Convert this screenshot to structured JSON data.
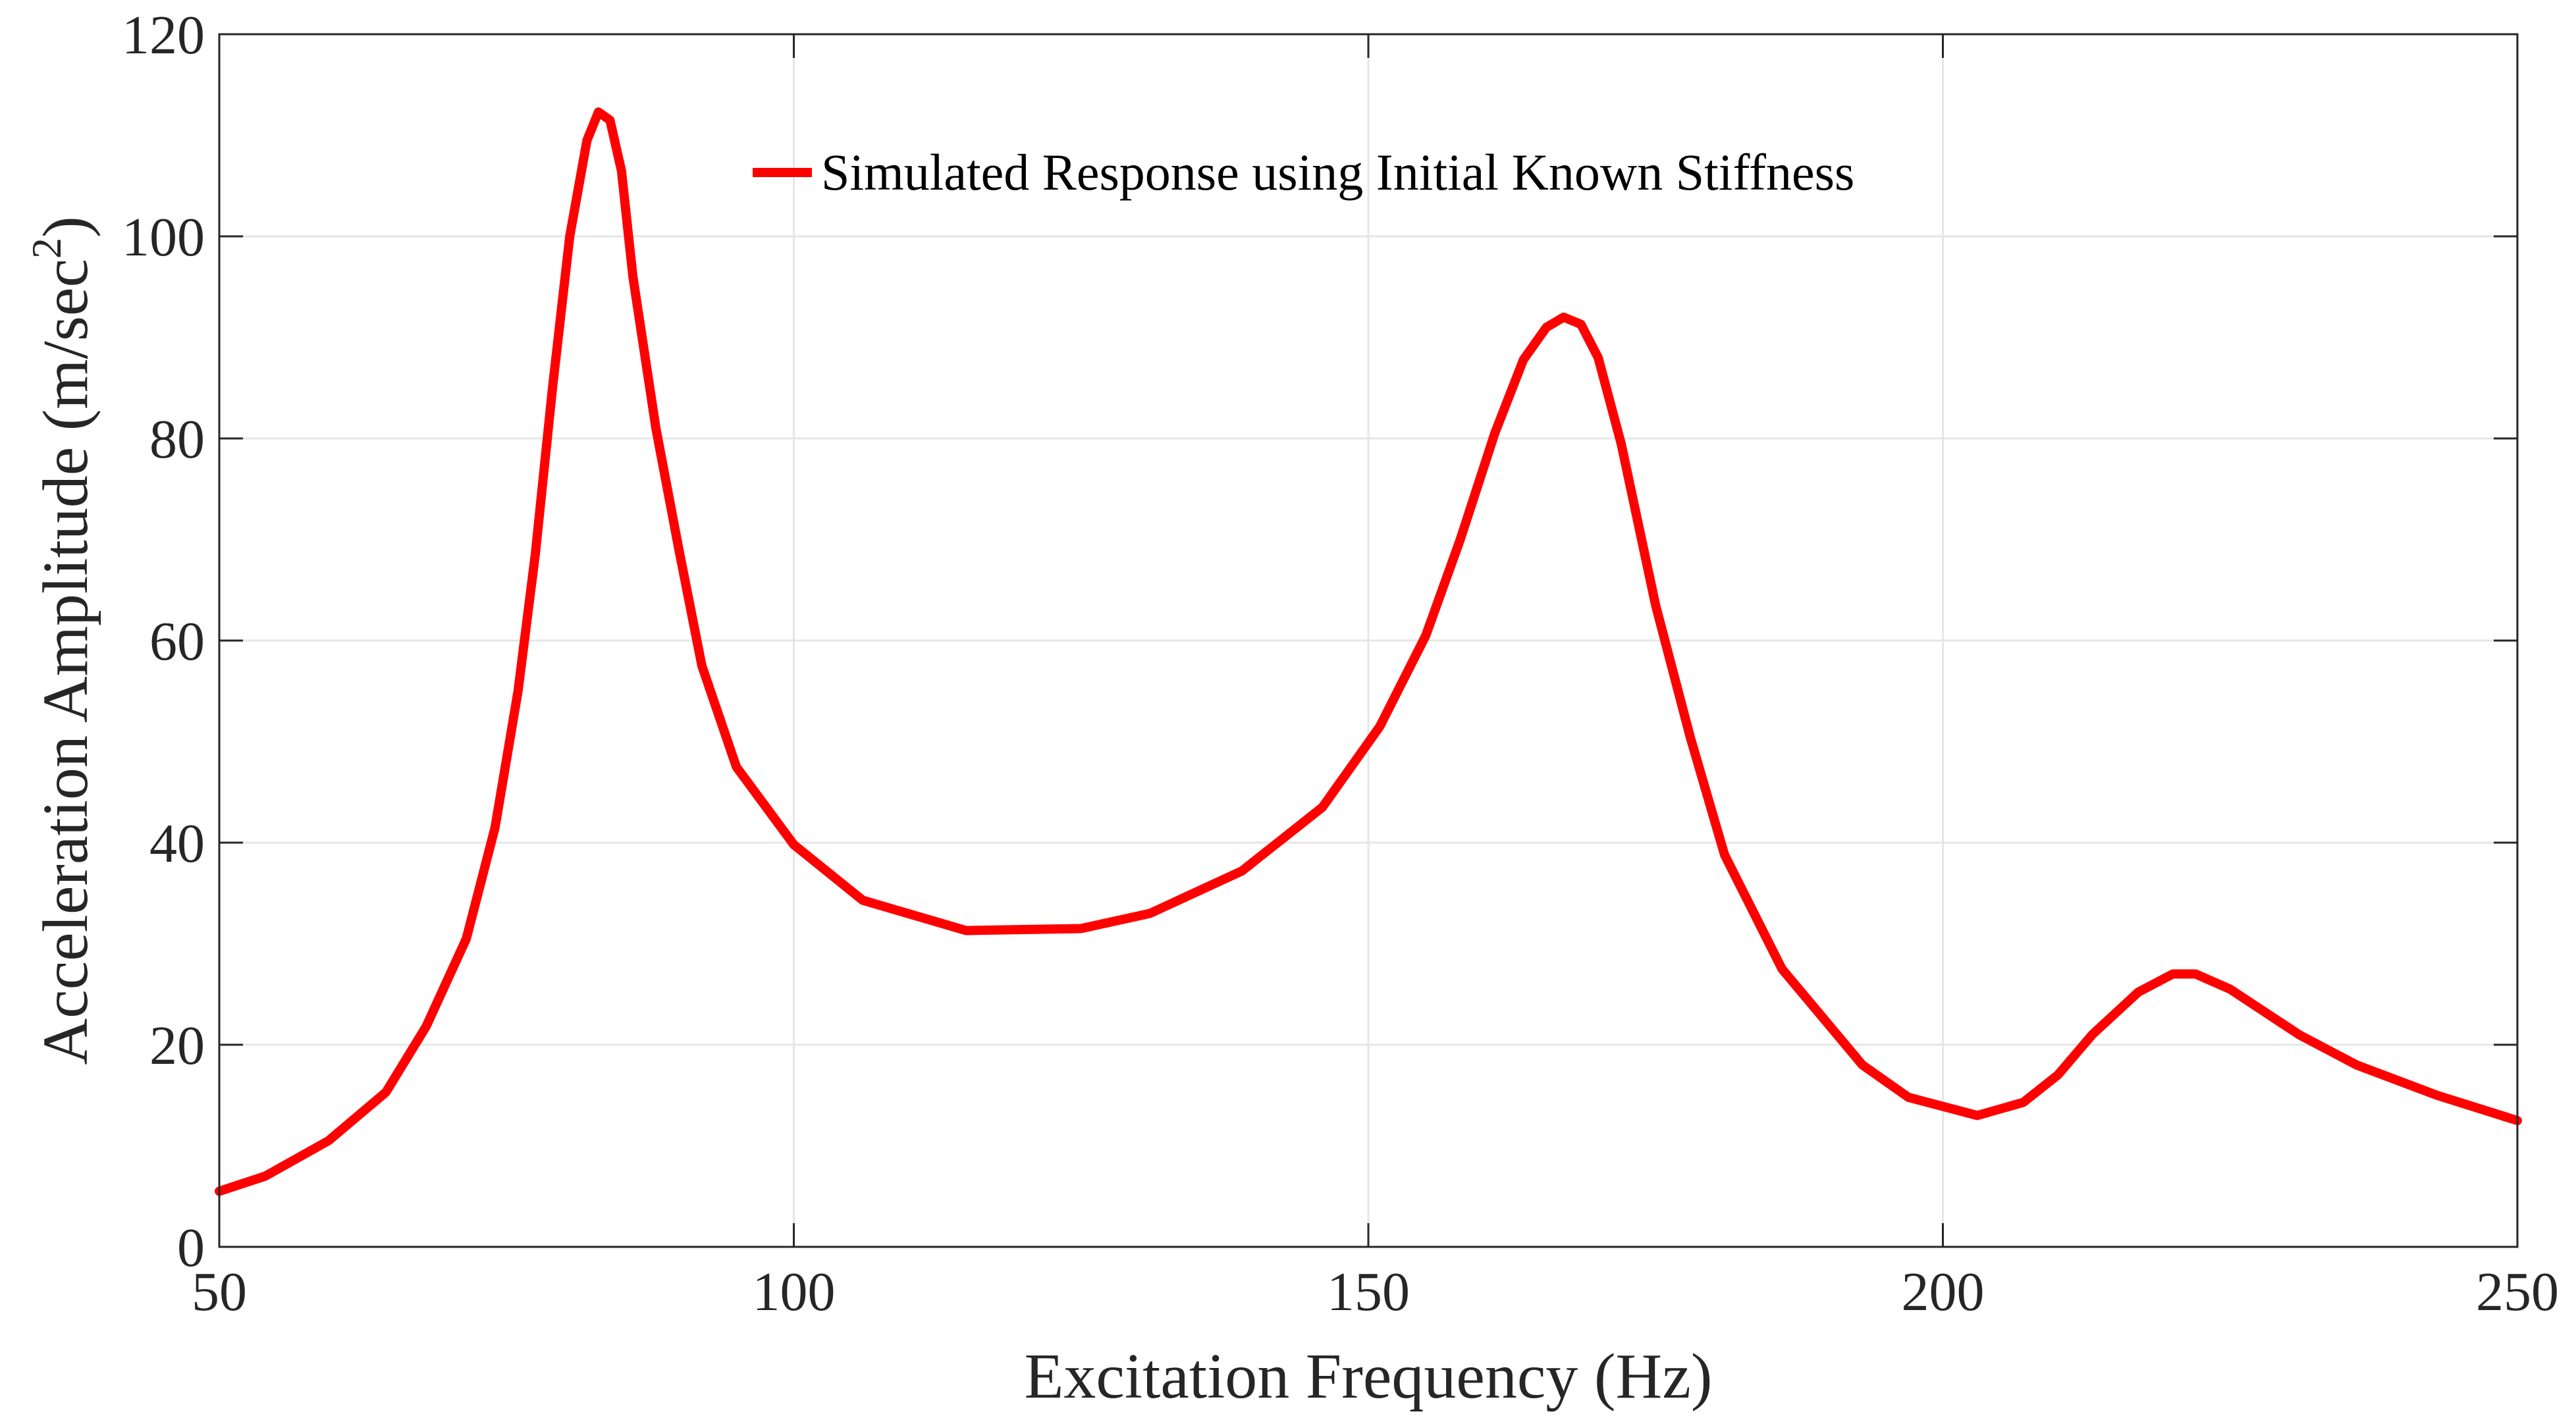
{
  "chart_data": {
    "type": "line",
    "title": "",
    "xlabel": "Excitation Frequency (Hz)",
    "ylabel": "Acceleration Amplitude (m/sec",
    "ylabel_superscript": "2",
    "ylabel_suffix": ")",
    "xlim": [
      50,
      250
    ],
    "ylim": [
      0,
      120
    ],
    "xticks": [
      50,
      100,
      150,
      200,
      250
    ],
    "yticks": [
      0,
      20,
      40,
      60,
      80,
      100,
      120
    ],
    "xtick_labels": [
      "50",
      "100",
      "150",
      "200",
      "250"
    ],
    "ytick_labels": [
      "0",
      "20",
      "40",
      "60",
      "80",
      "100",
      "120"
    ],
    "grid": true,
    "legend_position": "top-center",
    "colors": {
      "series": "#ff0000",
      "axis": "#262626",
      "grid": "#e6e6e6"
    },
    "series": [
      {
        "name": "Simulated Response using Initial Known Stiffness",
        "x": [
          50,
          54,
          59.5,
          64.5,
          68,
          71.5,
          74,
          76,
          77.5,
          79,
          80.5,
          82,
          83,
          84,
          85,
          86,
          88,
          90,
          92,
          95,
          100,
          106,
          115,
          125,
          131,
          139,
          146,
          151,
          155,
          158,
          161,
          163.5,
          165.5,
          167,
          168.5,
          170,
          172,
          175,
          178,
          181,
          186,
          193,
          197,
          203,
          207,
          210,
          213,
          217,
          220,
          222,
          225,
          231,
          236,
          243,
          250
        ],
        "values": [
          5.5,
          7.0,
          10.5,
          15.3,
          21.8,
          30.5,
          41.5,
          55.0,
          68.5,
          85.0,
          100.0,
          109.5,
          112.3,
          111.5,
          106.5,
          96.0,
          81.0,
          69.0,
          57.5,
          47.5,
          39.8,
          34.3,
          31.3,
          31.5,
          33.0,
          37.2,
          43.5,
          51.5,
          60.5,
          70.0,
          80.5,
          87.8,
          91.0,
          92.0,
          91.3,
          88.0,
          79.5,
          63.5,
          50.5,
          38.8,
          27.5,
          18.0,
          14.8,
          13.0,
          14.3,
          17.0,
          21.0,
          25.2,
          27.0,
          27.0,
          25.5,
          21.0,
          18.0,
          15.0,
          12.5
        ]
      }
    ]
  }
}
